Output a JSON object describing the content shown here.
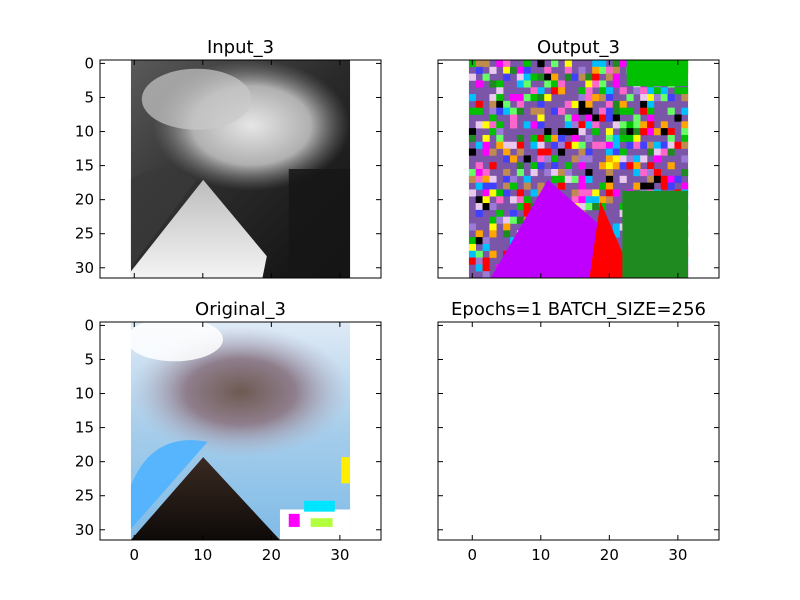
{
  "figure": {
    "background": "#ffffff"
  },
  "chart_data": [
    {
      "type": "image",
      "title": "Input_3",
      "image": "grayscale-photo",
      "xlim": [
        -5,
        36
      ],
      "ylim": [
        31.5,
        -0.5
      ],
      "yticks": [
        0,
        5,
        10,
        15,
        20,
        25,
        30
      ],
      "show_xticklabels": false,
      "show_yticklabels": true
    },
    {
      "type": "image",
      "title": "Output_3",
      "image": "false-color-segmentation",
      "xlim": [
        -5,
        36
      ],
      "ylim": [
        31.5,
        -0.5
      ],
      "yticks": [
        0,
        5,
        10,
        15,
        20,
        25,
        30
      ],
      "show_xticklabels": false,
      "show_yticklabels": false
    },
    {
      "type": "image",
      "title": "Original_3",
      "image": "color-photo",
      "xlim": [
        -5,
        36
      ],
      "ylim": [
        31.5,
        -0.5
      ],
      "xticks": [
        0,
        10,
        20,
        30
      ],
      "yticks": [
        0,
        5,
        10,
        15,
        20,
        25,
        30
      ],
      "show_xticklabels": true,
      "show_yticklabels": true
    },
    {
      "type": "empty",
      "title": "Epochs=1 BATCH_SIZE=256",
      "xlim": [
        -5,
        36
      ],
      "ylim": [
        31.5,
        -0.5
      ],
      "xticks": [
        0,
        10,
        20,
        30
      ],
      "yticks": [
        0,
        5,
        10,
        15,
        20,
        25,
        30
      ],
      "show_xticklabels": true,
      "show_yticklabels": false
    }
  ]
}
